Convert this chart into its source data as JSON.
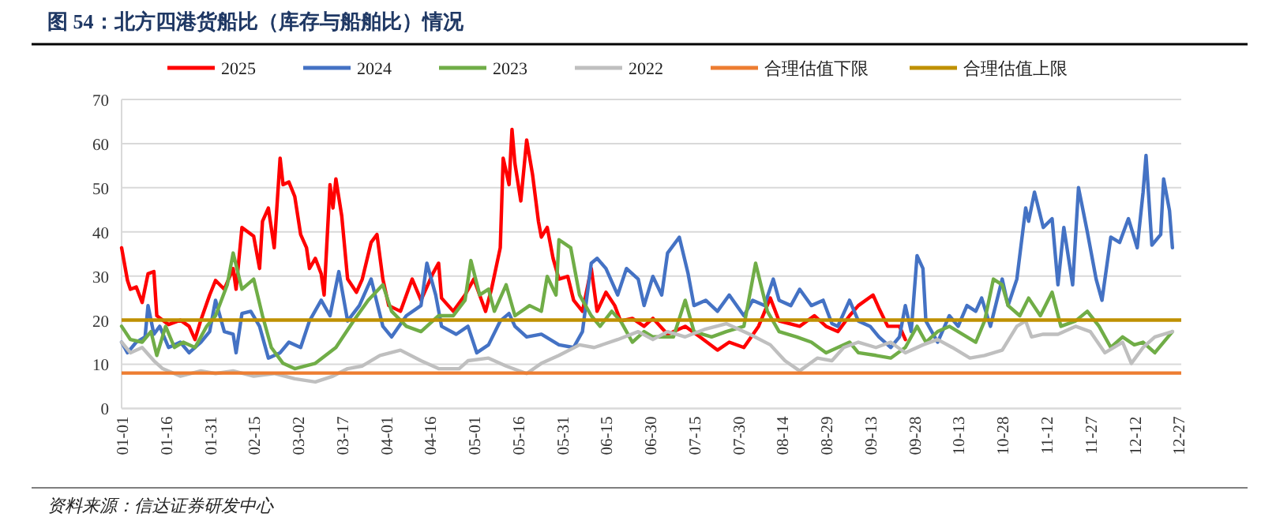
{
  "chart_data": {
    "type": "line",
    "title": "图 54：北方四港货船比（库存与船舶比）情况",
    "annotations": [
      "资料来源：信达证券研发中心"
    ],
    "xlim": [
      "--01-01",
      "--12-28"
    ],
    "xticks": [
      {
        "value": "--01-01",
        "label": "01-01"
      },
      {
        "value": "--01-16",
        "label": "01-16"
      },
      {
        "value": "--01-31",
        "label": "01-31"
      },
      {
        "value": "--02-15",
        "label": "02-15"
      },
      {
        "value": "--03-02",
        "label": "03-02"
      },
      {
        "value": "--03-17",
        "label": "03-17"
      },
      {
        "value": "--04-01",
        "label": "04-01"
      },
      {
        "value": "--04-16",
        "label": "04-16"
      },
      {
        "value": "--05-01",
        "label": "05-01"
      },
      {
        "value": "--05-16",
        "label": "05-16"
      },
      {
        "value": "--05-31",
        "label": "05-31"
      },
      {
        "value": "--06-15",
        "label": "06-15"
      },
      {
        "value": "--06-30",
        "label": "06-30"
      },
      {
        "value": "--07-15",
        "label": "07-15"
      },
      {
        "value": "--07-30",
        "label": "07-30"
      },
      {
        "value": "--08-14",
        "label": "08-14"
      },
      {
        "value": "--08-29",
        "label": "08-29"
      },
      {
        "value": "--09-13",
        "label": "09-13"
      },
      {
        "value": "--09-28",
        "label": "09-28"
      },
      {
        "value": "--10-13",
        "label": "10-13"
      },
      {
        "value": "--10-28",
        "label": "10-28"
      },
      {
        "value": "--11-12",
        "label": "11-12"
      },
      {
        "value": "--11-27",
        "label": "11-27"
      },
      {
        "value": "--12-12",
        "label": "12-12"
      },
      {
        "value": "--12-27",
        "label": "12-27"
      }
    ],
    "ylim": [
      0,
      70
    ],
    "yticks": [
      0,
      10,
      20,
      30,
      40,
      50,
      60,
      70
    ],
    "grid": "y",
    "legend": "top",
    "ref_lines": [
      {
        "axis": "y",
        "value": 8,
        "label": "合理估值下限",
        "color": "#ed7d31"
      },
      {
        "axis": "y",
        "value": 20,
        "label": "合理估值上限",
        "color": "#bf9000"
      }
    ],
    "series": [
      {
        "name": "2025",
        "color": "#ff0000",
        "x": [
          "--01-01",
          "--01-03",
          "--01-04",
          "--01-06",
          "--01-08",
          "--01-10",
          "--01-12",
          "--01-13",
          "--01-17",
          "--01-21",
          "--01-24",
          "--01-26",
          "--01-28",
          "--01-31",
          "--02-02",
          "--02-05",
          "--02-08",
          "--02-09",
          "--02-11",
          "--02-13",
          "--02-15",
          "--02-17",
          "--02-18",
          "--02-20",
          "--02-22",
          "--02-24",
          "--02-25",
          "--02-27",
          "--03-01",
          "--03-03",
          "--03-05",
          "--03-06",
          "--03-08",
          "--03-10",
          "--03-11",
          "--03-13",
          "--03-14",
          "--03-15",
          "--03-17",
          "--03-19",
          "--03-22",
          "--03-24",
          "--03-27",
          "--03-29",
          "--03-31",
          "--04-02",
          "--04-06",
          "--04-10",
          "--04-13",
          "--04-17",
          "--04-19",
          "--04-20",
          "--04-24",
          "--04-28",
          "--05-01",
          "--05-05",
          "--05-07",
          "--05-10",
          "--05-11",
          "--05-13",
          "--05-14",
          "--05-15",
          "--05-17",
          "--05-19",
          "--05-21",
          "--05-23",
          "--05-24",
          "--05-26",
          "--05-28",
          "--05-30",
          "--06-02",
          "--06-04",
          "--06-07",
          "--06-10",
          "--06-12",
          "--06-15",
          "--06-18",
          "--06-20",
          "--06-24",
          "--06-28",
          "--07-01",
          "--07-06",
          "--07-12",
          "--07-17",
          "--07-23",
          "--07-27",
          "--08-01",
          "--08-06",
          "--08-10",
          "--08-13",
          "--08-20",
          "--08-25",
          "--08-29",
          "--09-02",
          "--09-06",
          "--09-09",
          "--09-14",
          "--09-16",
          "--09-19",
          "--09-23",
          "--09-25"
        ],
        "values": [
          36.4,
          29,
          27,
          27.5,
          24,
          30.5,
          31,
          21,
          19,
          20,
          18.6,
          15.6,
          20,
          25.7,
          29,
          27,
          31.7,
          27,
          41,
          40,
          39,
          31.7,
          42.4,
          45.4,
          36.4,
          56.7,
          50.7,
          51.3,
          48,
          39.4,
          36.4,
          31.7,
          34,
          30.5,
          25.7,
          50.7,
          45.4,
          52,
          43.6,
          29.3,
          26.3,
          29.3,
          37.6,
          39.4,
          29.3,
          23.3,
          22,
          29.3,
          24.5,
          30.5,
          32.9,
          25,
          22,
          25.7,
          29.3,
          22,
          27,
          36.4,
          56.7,
          50.7,
          63.2,
          55.5,
          47,
          60.8,
          53,
          42.4,
          38.8,
          41,
          34,
          29.3,
          29.9,
          24.5,
          22,
          31.7,
          22,
          26.3,
          23.3,
          19.8,
          20.4,
          18.6,
          20.4,
          16.8,
          18.6,
          16.2,
          13.2,
          15,
          13.8,
          18.6,
          25,
          19.8,
          18.6,
          21,
          18.6,
          17.4,
          21,
          23.3,
          25.7,
          22.7,
          18.6,
          18.6,
          15.6
        ]
      },
      {
        "name": "2024",
        "color": "#4472c4",
        "x": [
          "--01-01",
          "--01-03",
          "--01-06",
          "--01-09",
          "--01-10",
          "--01-12",
          "--01-14",
          "--01-17",
          "--01-21",
          "--01-24",
          "--01-28",
          "--01-31",
          "--02-02",
          "--02-05",
          "--02-08",
          "--02-09",
          "--02-11",
          "--02-14",
          "--02-17",
          "--02-20",
          "--02-24",
          "--02-27",
          "--03-03",
          "--03-06",
          "--03-10",
          "--03-13",
          "--03-16",
          "--03-19",
          "--03-23",
          "--03-27",
          "--03-31",
          "--04-03",
          "--04-08",
          "--04-13",
          "--04-15",
          "--04-18",
          "--04-20",
          "--04-25",
          "--04-29",
          "--05-02",
          "--05-06",
          "--05-10",
          "--05-13",
          "--05-15",
          "--05-19",
          "--05-24",
          "--05-30",
          "--06-04",
          "--06-07",
          "--06-10",
          "--06-12",
          "--06-15",
          "--06-19",
          "--06-22",
          "--06-26",
          "--06-28",
          "--07-01",
          "--07-04",
          "--07-06",
          "--07-10",
          "--07-13",
          "--07-15",
          "--07-19",
          "--07-23",
          "--07-27",
          "--08-01",
          "--08-04",
          "--08-08",
          "--08-11",
          "--08-13",
          "--08-17",
          "--08-20",
          "--08-24",
          "--08-28",
          "--08-31",
          "--09-02",
          "--09-06",
          "--09-09",
          "--09-13",
          "--09-16",
          "--09-20",
          "--09-23",
          "--09-25",
          "--09-27",
          "--09-29",
          "--10-01",
          "--10-02",
          "--10-06",
          "--10-10",
          "--10-13",
          "--10-16",
          "--10-19",
          "--10-21",
          "--10-24",
          "--10-28",
          "--10-30",
          "--11-02",
          "--11-05",
          "--11-06",
          "--11-08",
          "--11-11",
          "--11-14",
          "--11-16",
          "--11-18",
          "--11-21",
          "--11-23",
          "--11-26",
          "--11-29",
          "--12-01",
          "--12-04",
          "--12-07",
          "--12-10",
          "--12-13",
          "--12-15",
          "--12-16",
          "--12-18",
          "--12-21",
          "--12-22",
          "--12-24",
          "--12-25"
        ],
        "values": [
          15,
          12.6,
          15,
          16.2,
          23.3,
          16.8,
          18.6,
          13.8,
          15,
          12.6,
          15,
          17.4,
          24.5,
          17.4,
          16.8,
          12.6,
          21.5,
          22,
          18.6,
          11.4,
          12.6,
          15,
          13.8,
          19.8,
          24.5,
          21,
          31,
          19.8,
          23.3,
          29.3,
          18.6,
          16.2,
          21,
          23.3,
          32.9,
          25.7,
          18.6,
          16.8,
          18.6,
          12.6,
          14.4,
          19.8,
          21.5,
          18.6,
          16.2,
          16.8,
          14.4,
          13.8,
          17.4,
          32.9,
          34,
          31.7,
          25.7,
          31.7,
          29.3,
          23.3,
          29.9,
          25.7,
          35.2,
          38.8,
          30.5,
          23.3,
          24.5,
          22,
          25.7,
          21,
          24.5,
          23.3,
          29.3,
          24.5,
          23.3,
          27,
          23.3,
          24.5,
          19.2,
          18.6,
          24.5,
          19.8,
          18.6,
          16.2,
          13.8,
          16.2,
          23.3,
          17.4,
          34.6,
          31.7,
          19.8,
          15,
          21,
          18.6,
          23.3,
          22,
          25,
          18.6,
          29.3,
          23.3,
          29.3,
          45.4,
          42.4,
          49,
          41,
          43,
          28,
          41,
          28,
          50,
          40,
          29.3,
          24.5,
          38.8,
          37.6,
          43,
          36.4,
          49,
          57.3,
          37,
          39.4,
          52,
          44.8,
          36.4
        ]
      },
      {
        "name": "2023",
        "color": "#70ad47",
        "x": [
          "--01-01",
          "--01-04",
          "--01-08",
          "--01-11",
          "--01-13",
          "--01-16",
          "--01-19",
          "--01-22",
          "--01-26",
          "--01-30",
          "--02-02",
          "--02-06",
          "--02-08",
          "--02-11",
          "--02-15",
          "--02-18",
          "--02-21",
          "--02-25",
          "--03-01",
          "--03-08",
          "--03-15",
          "--03-21",
          "--03-26",
          "--03-31",
          "--04-03",
          "--04-08",
          "--04-13",
          "--04-19",
          "--04-24",
          "--04-28",
          "--04-30",
          "--05-03",
          "--05-06",
          "--05-08",
          "--05-12",
          "--05-15",
          "--05-20",
          "--05-24",
          "--05-26",
          "--05-29",
          "--05-30",
          "--06-03",
          "--06-06",
          "--06-10",
          "--06-13",
          "--06-17",
          "--06-20",
          "--06-24",
          "--06-28",
          "--07-01",
          "--07-08",
          "--07-12",
          "--07-15",
          "--07-21",
          "--07-26",
          "--08-01",
          "--08-05",
          "--08-09",
          "--08-13",
          "--08-19",
          "--08-24",
          "--08-29",
          "--09-06",
          "--09-09",
          "--09-15",
          "--09-20",
          "--09-25",
          "--09-29",
          "--10-02",
          "--10-06",
          "--10-10",
          "--10-13",
          "--10-19",
          "--10-22",
          "--10-25",
          "--10-28",
          "--10-30",
          "--11-03",
          "--11-06",
          "--11-10",
          "--11-14",
          "--11-17",
          "--11-22",
          "--11-26",
          "--11-30",
          "--12-04",
          "--12-08",
          "--12-12",
          "--12-15",
          "--12-19",
          "--12-25"
        ],
        "values": [
          18.6,
          15.6,
          15,
          17.4,
          12,
          18.6,
          13.8,
          15,
          13.8,
          18.6,
          21,
          28,
          35.2,
          27,
          29.3,
          21,
          13.8,
          10.2,
          9,
          10.2,
          13.8,
          19.8,
          24.5,
          28,
          22,
          18.6,
          17.4,
          21,
          21,
          24.5,
          33.5,
          25.7,
          27,
          22,
          28,
          21,
          23.3,
          22,
          29.9,
          25.7,
          38.2,
          36.4,
          25.7,
          21,
          18.6,
          22,
          19.8,
          15,
          17.4,
          16.2,
          16.2,
          24.5,
          17.4,
          16.2,
          17.4,
          18.6,
          32.9,
          22,
          17.4,
          16.2,
          15,
          12.6,
          15,
          12.6,
          12,
          11.4,
          13.8,
          18.6,
          15,
          17.4,
          18.6,
          17.4,
          15,
          19.8,
          29.3,
          28,
          23.3,
          21,
          25,
          21,
          26.3,
          18.6,
          19.8,
          22,
          18.6,
          13.8,
          16.2,
          14.4,
          15,
          12.6,
          17.4
        ]
      },
      {
        "name": "2022",
        "color": "#bfbfbf",
        "x": [
          "--01-01",
          "--01-04",
          "--01-08",
          "--01-12",
          "--01-15",
          "--01-21",
          "--01-28",
          "--02-02",
          "--02-08",
          "--02-15",
          "--02-22",
          "--03-01",
          "--03-08",
          "--03-14",
          "--03-19",
          "--03-24",
          "--03-30",
          "--04-06",
          "--04-13",
          "--04-19",
          "--04-26",
          "--04-29",
          "--05-06",
          "--05-12",
          "--05-19",
          "--05-24",
          "--05-30",
          "--06-06",
          "--06-11",
          "--06-19",
          "--06-26",
          "--07-01",
          "--07-06",
          "--07-12",
          "--07-19",
          "--07-26",
          "--08-03",
          "--08-10",
          "--08-15",
          "--08-20",
          "--08-26",
          "--08-31",
          "--09-04",
          "--09-09",
          "--09-15",
          "--09-20",
          "--09-25",
          "--10-01",
          "--10-06",
          "--10-11",
          "--10-17",
          "--10-22",
          "--10-28",
          "--11-02",
          "--11-05",
          "--11-07",
          "--11-11",
          "--11-16",
          "--11-22",
          "--11-27",
          "--12-02",
          "--12-08",
          "--12-11",
          "--12-15",
          "--12-19",
          "--12-25"
        ],
        "values": [
          15,
          12.6,
          13.8,
          10.8,
          9,
          7.3,
          8.5,
          7.9,
          8.5,
          7.3,
          7.9,
          6.7,
          6,
          7.3,
          9,
          9.6,
          12,
          13.2,
          10.8,
          9,
          9,
          10.8,
          11.4,
          9.6,
          7.9,
          10.2,
          12,
          14.4,
          13.8,
          15.6,
          17.4,
          15.6,
          17.4,
          16.2,
          18,
          19.2,
          16.8,
          14.4,
          10.8,
          8.5,
          11.4,
          10.8,
          13.8,
          15,
          13.8,
          15,
          12.6,
          14.4,
          15.6,
          13.8,
          11.4,
          12,
          13.2,
          18.6,
          19.8,
          16.2,
          16.8,
          16.8,
          18.6,
          17.4,
          12.6,
          15,
          10.2,
          13.8,
          16.2,
          17.4
        ]
      }
    ]
  }
}
